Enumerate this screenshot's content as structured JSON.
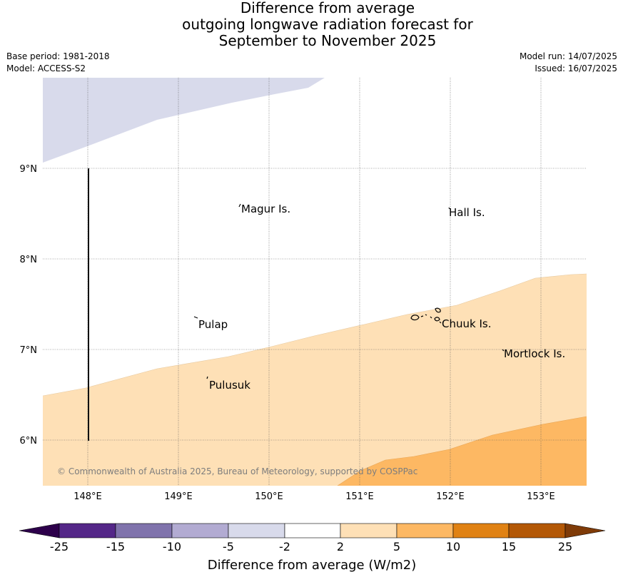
{
  "title": {
    "line1": "Difference from average",
    "line2": "outgoing longwave radiation forecast for",
    "line3": "September to November 2025"
  },
  "meta": {
    "base_period": "Base period: 1981-2018",
    "model": "Model: ACCESS-S2",
    "model_run": "Model run: 14/07/2025",
    "issued": "Issued: 16/07/2025"
  },
  "map": {
    "lon_ticks": [
      "148°E",
      "149°E",
      "150°E",
      "151°E",
      "152°E",
      "153°E"
    ],
    "lat_ticks": [
      "9°N",
      "8°N",
      "7°N",
      "6°N"
    ],
    "places": [
      "Magur Is.",
      "Hall Is.",
      "Pulap",
      "Chuuk Is.",
      "Mortlock Is.",
      "Pulusuk"
    ],
    "copyright": "© Commonwealth of Australia 2025, Bureau of Meteorology, supported by COSPPac"
  },
  "colorbar": {
    "title": "Difference from average (W/m2)",
    "labels": [
      "-25",
      "-15",
      "-10",
      "-5",
      "-2",
      "2",
      "5",
      "10",
      "15",
      "25"
    ],
    "colors": [
      "#2d004b",
      "#542788",
      "#8073ac",
      "#b2abd2",
      "#d8daeb",
      "#ffffff",
      "#fee0b6",
      "#fdb863",
      "#e08214",
      "#b35806",
      "#7f3b08"
    ]
  }
}
